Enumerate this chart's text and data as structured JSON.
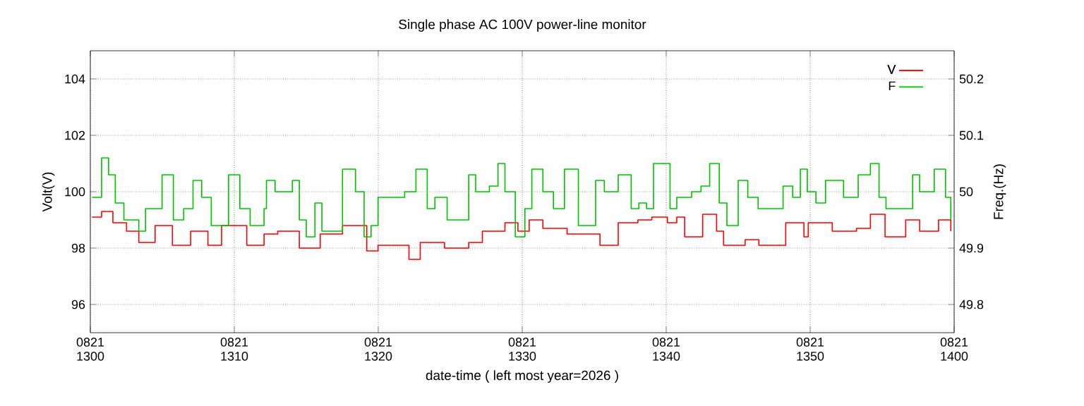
{
  "chart_data": {
    "type": "step",
    "title": "Single phase AC 100V power-line monitor",
    "xlabel": "date-time ( left most year=2026 )",
    "ylabel": "Volt(V)",
    "y2label": "Freq.(Hz)",
    "xlim": [
      "2026-08-21T13:00",
      "2026-08-21T14:00"
    ],
    "xticks": [
      {
        "value": "2026-08-21T13:00",
        "label": "0821 1300"
      },
      {
        "value": "2026-08-21T13:10",
        "label": "0821 1310"
      },
      {
        "value": "2026-08-21T13:20",
        "label": "0821 1320"
      },
      {
        "value": "2026-08-21T13:30",
        "label": "0821 1330"
      },
      {
        "value": "2026-08-21T13:40",
        "label": "0821 1340"
      },
      {
        "value": "2026-08-21T13:50",
        "label": "0821 1350"
      },
      {
        "value": "2026-08-21T14:00",
        "label": "0821 1400"
      }
    ],
    "ylim": [
      95,
      105
    ],
    "yticks": [
      96,
      98,
      100,
      102,
      104
    ],
    "y2lim": [
      49.75,
      50.25
    ],
    "y2ticks": [
      49.8,
      49.9,
      50,
      50.1,
      50.2
    ],
    "grid": true,
    "legend": "top right",
    "line_style": "solid",
    "series": [
      {
        "name": "V",
        "color": "#ff0000",
        "x": [
          "2026-08-21T13:00:07",
          "2026-08-21T13:00:47",
          "2026-08-21T13:01:34",
          "2026-08-21T13:02:31",
          "2026-08-21T13:03:22",
          "2026-08-21T13:04:30",
          "2026-08-21T13:05:42",
          "2026-08-21T13:06:58",
          "2026-08-21T13:08:10",
          "2026-08-21T13:09:07",
          "2026-08-21T13:10:52",
          "2026-08-21T13:12:04",
          "2026-08-21T13:13:01",
          "2026-08-21T13:14:31",
          "2026-08-21T13:15:58",
          "2026-08-21T13:17:31",
          "2026-08-21T13:19:12",
          "2026-08-21T13:19:59",
          "2026-08-21T13:20:42",
          "2026-08-21T13:22:08",
          "2026-08-21T13:22:55",
          "2026-08-21T13:24:36",
          "2026-08-21T13:26:17",
          "2026-08-21T13:27:14",
          "2026-08-21T13:28:48",
          "2026-08-21T13:29:42",
          "2026-08-21T13:30:29",
          "2026-08-21T13:31:26",
          "2026-08-21T13:33:07",
          "2026-08-21T13:34:12",
          "2026-08-21T13:35:24",
          "2026-08-21T13:36:40",
          "2026-08-21T13:38:02",
          "2026-08-21T13:39:00",
          "2026-08-21T13:40:05",
          "2026-08-21T13:40:44",
          "2026-08-21T13:41:17",
          "2026-08-21T13:42:32",
          "2026-08-21T13:43:30",
          "2026-08-21T13:43:59",
          "2026-08-21T13:45:29",
          "2026-08-21T13:46:26",
          "2026-08-21T13:48:18",
          "2026-08-21T13:49:34",
          "2026-08-21T13:49:52",
          "2026-08-21T13:51:32",
          "2026-08-21T13:53:13",
          "2026-08-21T13:54:11",
          "2026-08-21T13:55:12",
          "2026-08-21T13:56:38",
          "2026-08-21T13:57:36",
          "2026-08-21T13:58:55",
          "2026-08-21T13:59:46"
        ],
        "values": [
          99.1,
          99.3,
          98.9,
          98.6,
          98.2,
          98.8,
          98.1,
          98.6,
          98.1,
          98.8,
          98.1,
          98.5,
          98.6,
          98.0,
          98.5,
          98.8,
          97.9,
          98.1,
          98.1,
          97.6,
          98.2,
          98.0,
          98.2,
          98.6,
          98.9,
          98.6,
          99.0,
          98.7,
          98.5,
          98.5,
          98.1,
          98.9,
          99.0,
          99.1,
          98.9,
          99.1,
          98.4,
          99.2,
          98.6,
          98.1,
          98.3,
          98.1,
          98.9,
          98.4,
          98.9,
          98.6,
          98.7,
          99.2,
          98.4,
          99.0,
          98.6,
          99.0,
          98.6
        ]
      },
      {
        "name": "F",
        "color": "#00c000",
        "axis": "y2",
        "x": [
          "2026-08-21T13:00:07",
          "2026-08-21T13:00:47",
          "2026-08-21T13:01:16",
          "2026-08-21T13:01:44",
          "2026-08-21T13:02:20",
          "2026-08-21T13:03:22",
          "2026-08-21T13:03:50",
          "2026-08-21T13:04:59",
          "2026-08-21T13:05:46",
          "2026-08-21T13:06:29",
          "2026-08-21T13:07:08",
          "2026-08-21T13:07:44",
          "2026-08-21T13:08:24",
          "2026-08-21T13:09:36",
          "2026-08-21T13:10:23",
          "2026-08-21T13:11:06",
          "2026-08-21T13:12:04",
          "2026-08-21T13:12:14",
          "2026-08-21T13:12:50",
          "2026-08-21T13:14:02",
          "2026-08-21T13:14:31",
          "2026-08-21T13:15:00",
          "2026-08-21T13:15:36",
          "2026-08-21T13:16:05",
          "2026-08-21T13:17:31",
          "2026-08-21T13:18:25",
          "2026-08-21T13:19:01",
          "2026-08-21T13:19:30",
          "2026-08-21T13:19:59",
          "2026-08-21T13:21:11",
          "2026-08-21T13:21:50",
          "2026-08-21T13:22:37",
          "2026-08-21T13:23:24",
          "2026-08-21T13:23:56",
          "2026-08-21T13:24:47",
          "2026-08-21T13:26:17",
          "2026-08-21T13:26:46",
          "2026-08-21T13:27:43",
          "2026-08-21T13:28:19",
          "2026-08-21T13:28:48",
          "2026-08-21T13:29:31",
          "2026-08-21T13:30:11",
          "2026-08-21T13:30:40",
          "2026-08-21T13:31:26",
          "2026-08-21T13:32:10",
          "2026-08-21T13:32:56",
          "2026-08-21T13:33:54",
          "2026-08-21T13:35:06",
          "2026-08-21T13:35:42",
          "2026-08-21T13:36:40",
          "2026-08-21T13:37:34",
          "2026-08-21T13:38:06",
          "2026-08-21T13:38:38",
          "2026-08-21T13:39:07",
          "2026-08-21T13:40:16",
          "2026-08-21T13:40:44",
          "2026-08-21T13:41:46",
          "2026-08-21T13:42:25",
          "2026-08-21T13:43:01",
          "2026-08-21T13:43:41",
          "2026-08-21T13:44:13",
          "2026-08-21T13:45:00",
          "2026-08-21T13:45:40",
          "2026-08-21T13:46:23",
          "2026-08-21T13:47:20",
          "2026-08-21T13:48:07",
          "2026-08-21T13:48:47",
          "2026-08-21T13:49:19",
          "2026-08-21T13:49:48",
          "2026-08-21T13:50:24",
          "2026-08-21T13:51:04",
          "2026-08-21T13:52:19",
          "2026-08-21T13:53:20",
          "2026-08-21T13:54:11",
          "2026-08-21T13:54:47",
          "2026-08-21T13:55:16",
          "2026-08-21T13:56:28",
          "2026-08-21T13:57:07",
          "2026-08-21T13:57:36",
          "2026-08-21T13:58:37",
          "2026-08-21T13:59:24",
          "2026-08-21T13:59:46"
        ],
        "values": [
          49.99,
          50.06,
          50.03,
          49.98,
          49.95,
          49.93,
          49.97,
          50.03,
          49.95,
          49.97,
          50.02,
          49.99,
          49.94,
          50.03,
          49.97,
          49.94,
          49.97,
          50.02,
          50.0,
          50.02,
          49.95,
          49.92,
          49.98,
          49.93,
          50.04,
          50.0,
          49.92,
          49.94,
          49.99,
          49.99,
          50.0,
          50.04,
          49.97,
          49.99,
          49.95,
          50.03,
          50.0,
          50.01,
          50.05,
          50.0,
          49.92,
          49.97,
          50.04,
          50.0,
          49.97,
          50.04,
          49.94,
          50.02,
          50.0,
          50.03,
          49.97,
          49.98,
          49.97,
          50.05,
          49.97,
          49.99,
          50.0,
          50.01,
          50.05,
          49.98,
          49.94,
          50.02,
          49.99,
          49.97,
          49.97,
          50.01,
          49.99,
          50.04,
          50.0,
          49.98,
          50.02,
          49.99,
          50.03,
          50.05,
          49.99,
          49.97,
          49.97,
          50.03,
          50.0,
          50.04,
          49.99,
          49.95
        ]
      }
    ]
  }
}
